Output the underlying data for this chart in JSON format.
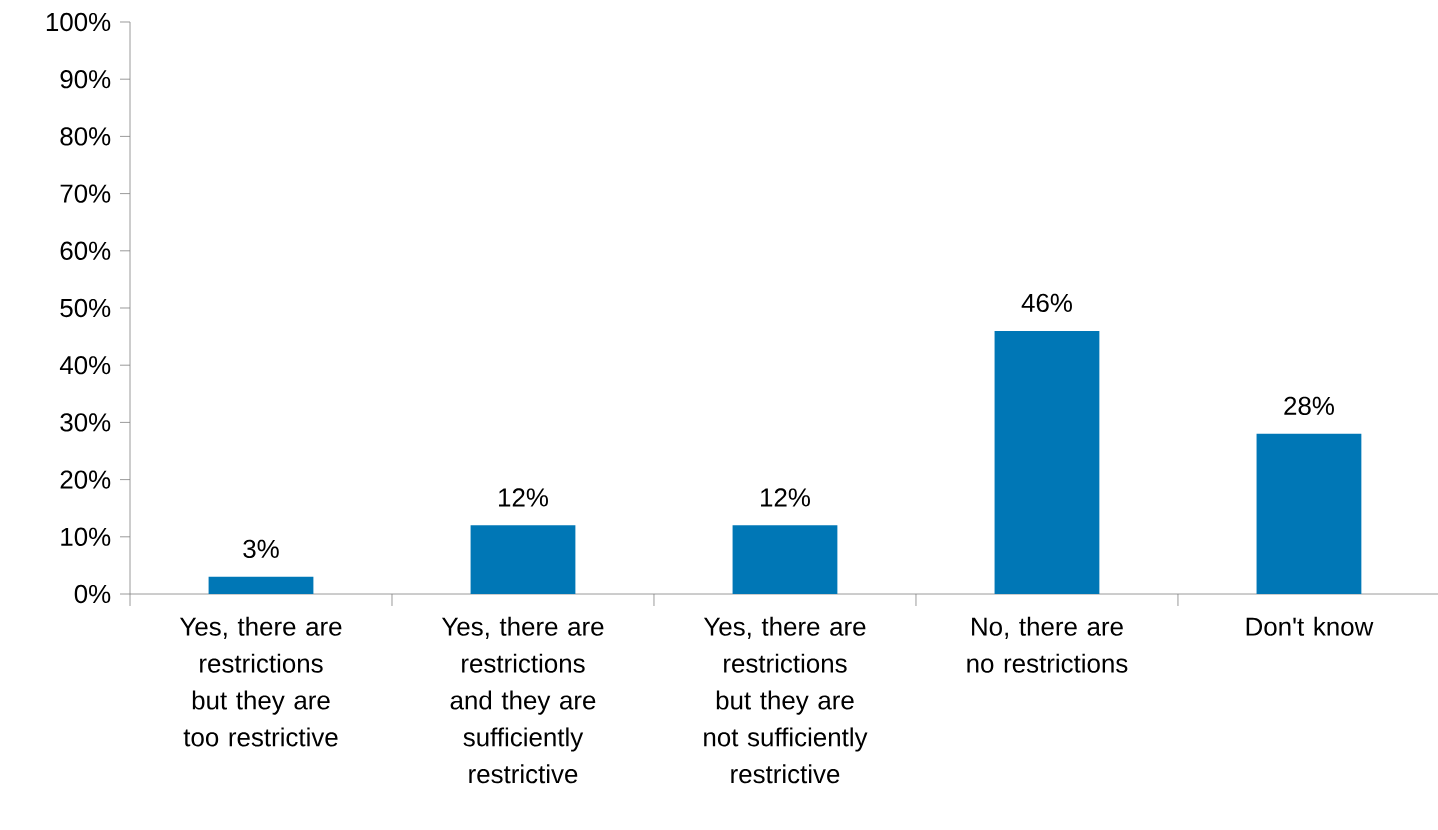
{
  "chart_data": {
    "type": "bar",
    "categories": [
      "Yes, there are restrictions but they are too restrictive",
      "Yes, there are restrictions and they are sufficiently restrictive",
      "Yes, there are restrictions but they are not sufficiently restrictive",
      "No, there are no restrictions",
      "Don't know"
    ],
    "values": [
      3,
      12,
      12,
      46,
      28
    ],
    "value_labels": [
      "3%",
      "12%",
      "12%",
      "46%",
      "28%"
    ],
    "color": "#0077b6",
    "ylim": [
      0,
      100
    ],
    "yticks": [
      {
        "value": 0,
        "label": "0%"
      },
      {
        "value": 10,
        "label": "10%"
      },
      {
        "value": 20,
        "label": "20%"
      },
      {
        "value": 30,
        "label": "30%"
      },
      {
        "value": 40,
        "label": "40%"
      },
      {
        "value": 50,
        "label": "50%"
      },
      {
        "value": 60,
        "label": "60%"
      },
      {
        "value": 70,
        "label": "70%"
      },
      {
        "value": 80,
        "label": "80%"
      },
      {
        "value": 90,
        "label": "90%"
      },
      {
        "value": 100,
        "label": "100%"
      }
    ]
  }
}
